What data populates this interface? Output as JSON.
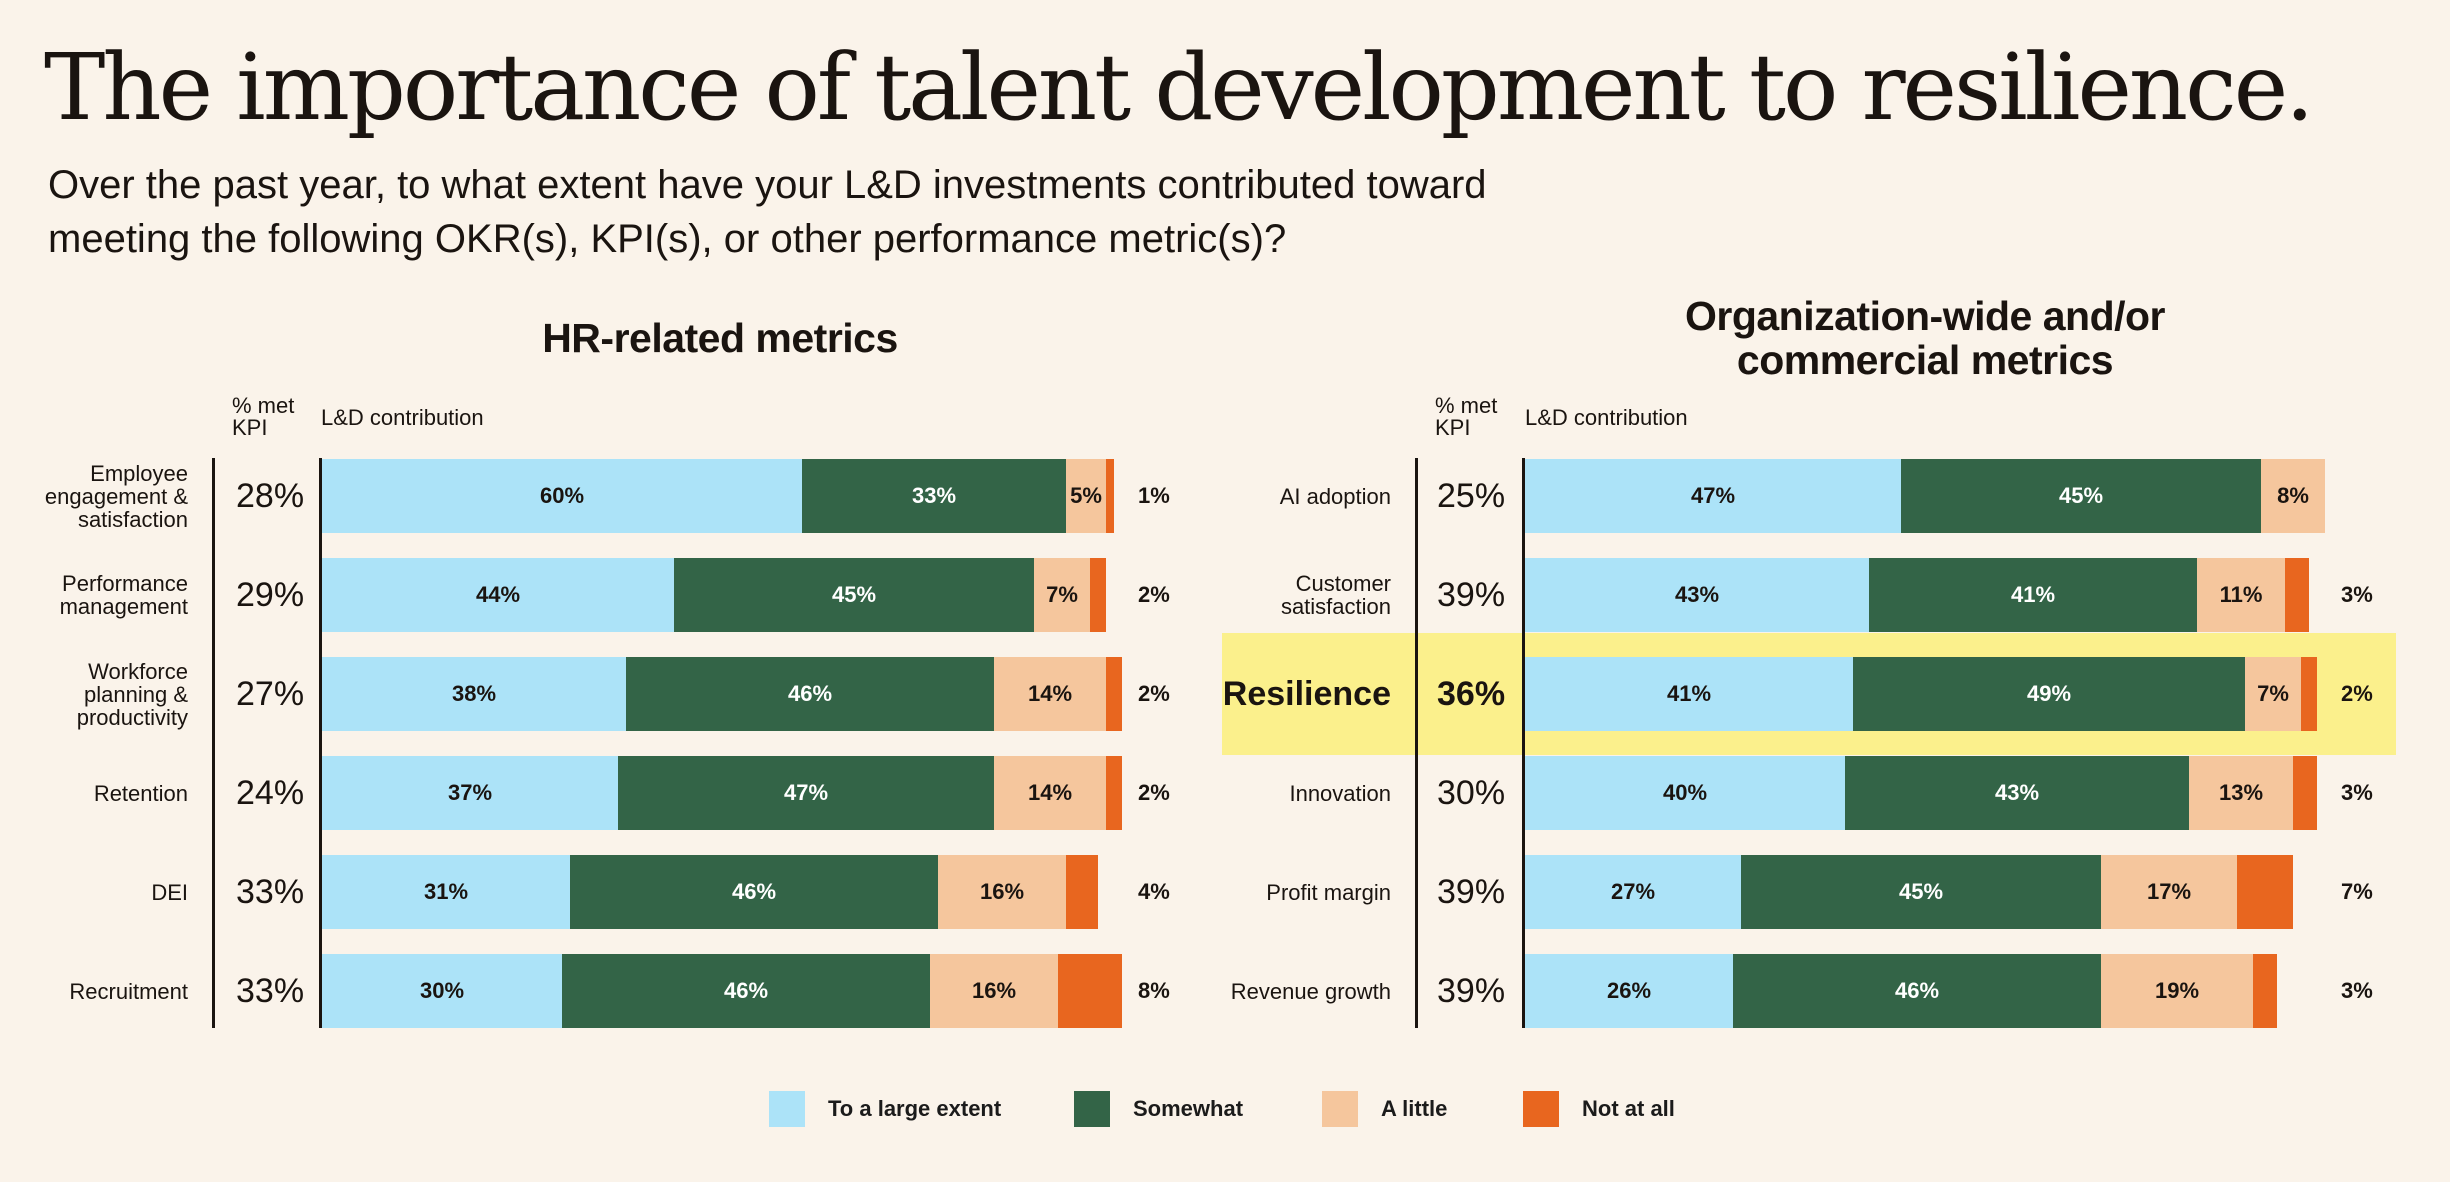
{
  "title": "The importance of talent development to resilience.",
  "subtitle": "Over the past year, to what extent have your L&D investments contributed toward meeting the following OKR(s), KPI(s), or other performance metric(s)?",
  "colors": {
    "large": "#ace3f8",
    "somewhat": "#336447",
    "little": "#f5c69d",
    "none": "#e8661f",
    "highlight": "#fbf08c",
    "background": "#faf3ea"
  },
  "legend": [
    {
      "key": "large",
      "label": "To a large extent"
    },
    {
      "key": "somewhat",
      "label": "Somewhat"
    },
    {
      "key": "little",
      "label": "A little"
    },
    {
      "key": "none",
      "label": "Not at all"
    }
  ],
  "chart_data": [
    {
      "type": "bar",
      "orientation": "horizontal-stacked",
      "title": "HR-related metrics",
      "kpi_header": "% met KPI",
      "contribution_header": "L&D contribution",
      "series_names": [
        "To a large extent",
        "Somewhat",
        "A little",
        "Not at all"
      ],
      "rows": [
        {
          "label": "Employee engagement & satisfaction",
          "kpi": "28%",
          "values": [
            60,
            33,
            5,
            1
          ]
        },
        {
          "label": "Performance management",
          "kpi": "29%",
          "values": [
            44,
            45,
            7,
            2
          ]
        },
        {
          "label": "Workforce planning & productivity",
          "kpi": "27%",
          "values": [
            38,
            46,
            14,
            2
          ]
        },
        {
          "label": "Retention",
          "kpi": "24%",
          "values": [
            37,
            47,
            14,
            2
          ]
        },
        {
          "label": "DEI",
          "kpi": "33%",
          "values": [
            31,
            46,
            16,
            4
          ]
        },
        {
          "label": "Recruitment",
          "kpi": "33%",
          "values": [
            30,
            46,
            16,
            8
          ]
        }
      ]
    },
    {
      "type": "bar",
      "orientation": "horizontal-stacked",
      "title": "Organization-wide and/or commercial metrics",
      "kpi_header": "% met KPI",
      "contribution_header": "L&D contribution",
      "series_names": [
        "To a large extent",
        "Somewhat",
        "A little",
        "Not at all"
      ],
      "rows": [
        {
          "label": "AI adoption",
          "kpi": "25%",
          "values": [
            47,
            45,
            8,
            0
          ]
        },
        {
          "label": "Customer satisfaction",
          "kpi": "39%",
          "values": [
            43,
            41,
            11,
            3
          ]
        },
        {
          "label": "Resilience",
          "kpi": "36%",
          "values": [
            41,
            49,
            7,
            2
          ],
          "highlight": true
        },
        {
          "label": "Innovation",
          "kpi": "30%",
          "values": [
            40,
            43,
            13,
            3
          ]
        },
        {
          "label": "Profit margin",
          "kpi": "39%",
          "values": [
            27,
            45,
            17,
            7
          ]
        },
        {
          "label": "Revenue growth",
          "kpi": "39%",
          "values": [
            26,
            46,
            19,
            3
          ]
        }
      ]
    }
  ]
}
